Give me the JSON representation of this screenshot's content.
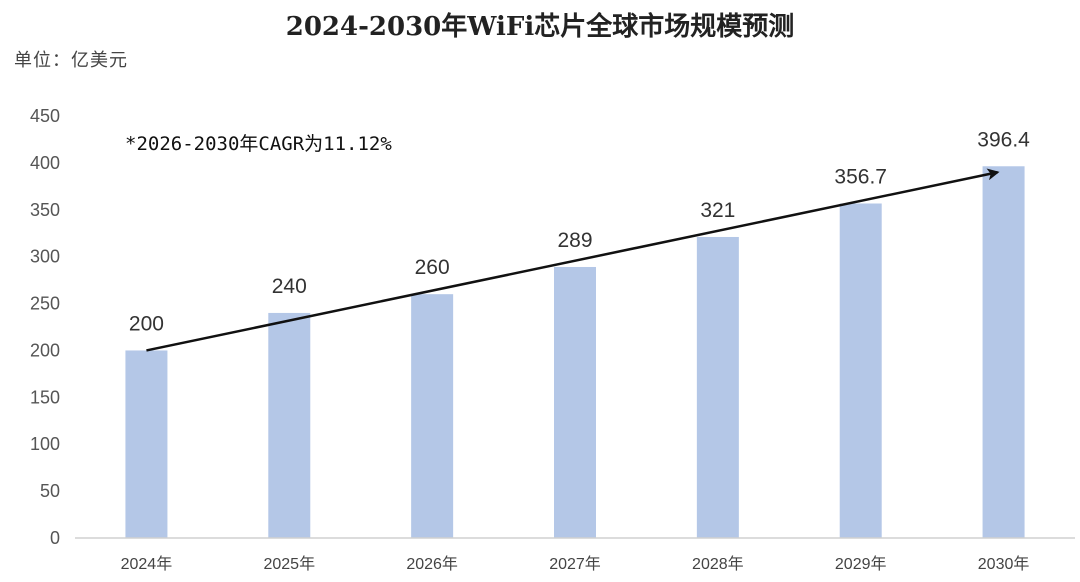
{
  "title": "2024-2030年WiFi芯片全球市场规模预测",
  "unit_label": "单位：亿美元",
  "annotation": "*2026-2030年CAGR为11.12%",
  "colors": {
    "bar": "#b4c7e7",
    "arrow": "#111111",
    "axis": "#d0d0d0"
  },
  "chart_data": {
    "type": "bar",
    "title": "2024-2030年WiFi芯片全球市场规模预测",
    "xlabel": "",
    "ylabel": "单位：亿美元",
    "categories": [
      "2024年",
      "2025年",
      "2026年",
      "2027年",
      "2028年",
      "2029年",
      "2030年"
    ],
    "values": [
      200,
      240,
      260,
      289,
      321,
      356.7,
      396.4
    ],
    "value_labels": [
      "200",
      "240",
      "260",
      "289",
      "321",
      "356.7",
      "396.4"
    ],
    "ylim": [
      0,
      450
    ],
    "yticks": [
      0,
      50,
      100,
      150,
      200,
      250,
      300,
      350,
      400,
      450
    ],
    "grid": false,
    "trend_arrow": {
      "from": "2024年",
      "to": "2030年",
      "label": "*2026-2030年CAGR为11.12%"
    }
  }
}
